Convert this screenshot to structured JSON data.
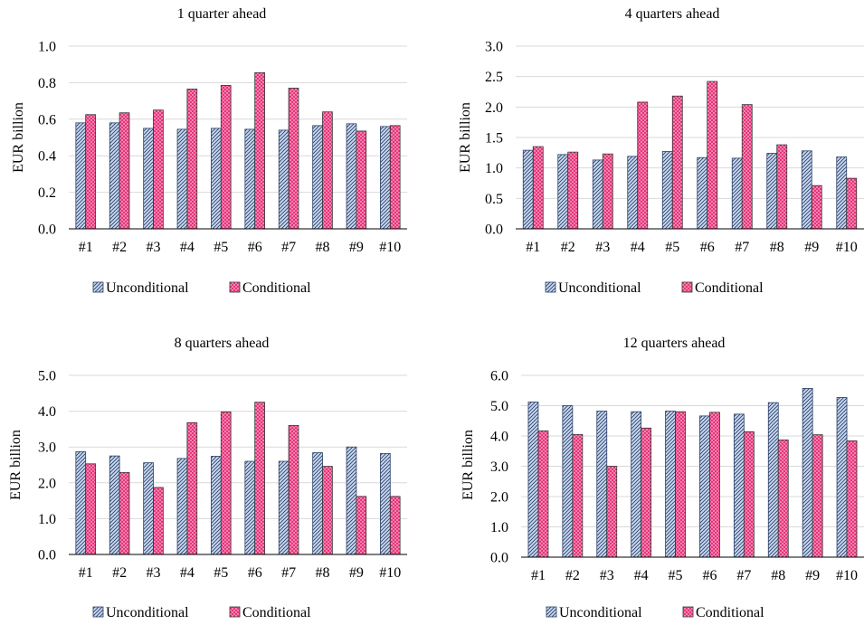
{
  "chart_data": [
    {
      "type": "bar",
      "title": "1 quarter ahead",
      "ylabel": "EUR billion",
      "xlabel": "",
      "categories": [
        "#1",
        "#2",
        "#3",
        "#4",
        "#5",
        "#6",
        "#7",
        "#8",
        "#9",
        "#10"
      ],
      "ylim": [
        0,
        1.0
      ],
      "yticks": [
        "0.0",
        "0.2",
        "0.4",
        "0.6",
        "0.8",
        "1.0"
      ],
      "grid": true,
      "legend": "bottom",
      "series": [
        {
          "name": "Unconditional",
          "values": [
            0.58,
            0.58,
            0.55,
            0.545,
            0.55,
            0.545,
            0.54,
            0.565,
            0.575,
            0.56
          ]
        },
        {
          "name": "Conditional",
          "values": [
            0.625,
            0.635,
            0.65,
            0.765,
            0.785,
            0.855,
            0.77,
            0.64,
            0.535,
            0.565
          ]
        }
      ]
    },
    {
      "type": "bar",
      "title": "4 quarters ahead",
      "ylabel": "EUR billion",
      "xlabel": "",
      "categories": [
        "#1",
        "#2",
        "#3",
        "#4",
        "#5",
        "#6",
        "#7",
        "#8",
        "#9",
        "#10"
      ],
      "ylim": [
        0,
        3.0
      ],
      "yticks": [
        "0.0",
        "0.5",
        "1.0",
        "1.5",
        "2.0",
        "2.5",
        "3.0"
      ],
      "grid": true,
      "legend": "bottom",
      "series": [
        {
          "name": "Unconditional",
          "values": [
            1.29,
            1.22,
            1.13,
            1.19,
            1.27,
            1.17,
            1.16,
            1.24,
            1.28,
            1.18
          ]
        },
        {
          "name": "Conditional",
          "values": [
            1.35,
            1.26,
            1.23,
            2.08,
            2.18,
            2.42,
            2.04,
            1.38,
            0.71,
            0.83
          ]
        }
      ]
    },
    {
      "type": "bar",
      "title": "8 quarters ahead",
      "ylabel": "EUR billion",
      "xlabel": "",
      "categories": [
        "#1",
        "#2",
        "#3",
        "#4",
        "#5",
        "#6",
        "#7",
        "#8",
        "#9",
        "#10"
      ],
      "ylim": [
        0,
        5.0
      ],
      "yticks": [
        "0.0",
        "1.0",
        "2.0",
        "3.0",
        "4.0",
        "5.0"
      ],
      "grid": true,
      "legend": "bottom",
      "series": [
        {
          "name": "Unconditional",
          "values": [
            2.87,
            2.75,
            2.56,
            2.68,
            2.74,
            2.6,
            2.6,
            2.84,
            3.0,
            2.82
          ]
        },
        {
          "name": "Conditional",
          "values": [
            2.53,
            2.29,
            1.87,
            3.68,
            3.98,
            4.25,
            3.6,
            2.46,
            1.62,
            1.62
          ]
        }
      ]
    },
    {
      "type": "bar",
      "title": "12 quarters ahead",
      "ylabel": "EUR billion",
      "xlabel": "",
      "categories": [
        "#1",
        "#2",
        "#3",
        "#4",
        "#5",
        "#6",
        "#7",
        "#8",
        "#9",
        "#10"
      ],
      "ylim": [
        0,
        6.0
      ],
      "yticks": [
        "0.0",
        "1.0",
        "2.0",
        "3.0",
        "4.0",
        "5.0",
        "6.0"
      ],
      "grid": true,
      "legend": "bottom",
      "series": [
        {
          "name": "Unconditional",
          "values": [
            5.12,
            5.0,
            4.82,
            4.8,
            4.82,
            4.66,
            4.72,
            5.1,
            5.57,
            5.27
          ]
        },
        {
          "name": "Conditional",
          "values": [
            4.17,
            4.05,
            3.0,
            4.26,
            4.8,
            4.78,
            4.14,
            3.87,
            4.04,
            3.84
          ]
        }
      ]
    }
  ],
  "colors": {
    "unconditional_fill": "#c9d9f1",
    "unconditional_hatch": "#2a3f66",
    "conditional_fill": "#e8337a",
    "conditional_dots": "#ffffff",
    "grid": "#d9d9d9",
    "axis": "#000000"
  }
}
